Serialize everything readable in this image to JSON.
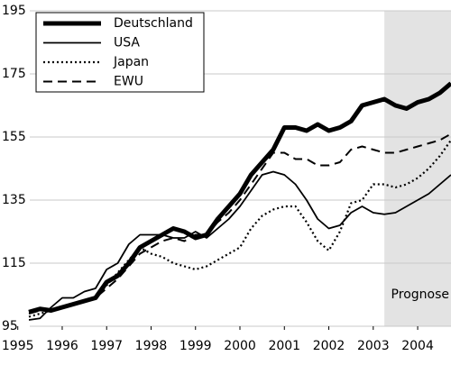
{
  "chart_data": {
    "type": "line",
    "x": [
      1995.25,
      1995.5,
      1995.75,
      1996,
      1996.25,
      1996.5,
      1996.75,
      1997,
      1997.25,
      1997.5,
      1997.75,
      1998,
      1998.25,
      1998.5,
      1998.75,
      1999,
      1999.25,
      1999.5,
      1999.75,
      2000,
      2000.25,
      2000.5,
      2000.75,
      2001,
      2001.25,
      2001.5,
      2001.75,
      2002,
      2002.25,
      2002.5,
      2002.75,
      2003,
      2003.25,
      2003.5,
      2003.75,
      2004,
      2004.25,
      2004.5,
      2004.75
    ],
    "series": [
      {
        "name": "Deutschland",
        "color": "#000000",
        "width": 5,
        "dash": "none",
        "values": [
          99.5,
          100.5,
          100,
          101,
          102,
          103,
          104,
          109,
          111,
          115,
          120,
          122,
          124,
          126,
          125,
          123,
          124,
          129,
          133,
          137,
          143,
          147,
          151,
          158,
          158,
          157,
          159,
          157,
          158,
          160,
          165,
          166,
          167,
          165,
          164,
          166,
          167,
          169,
          172
        ]
      },
      {
        "name": "USA",
        "color": "#000000",
        "width": 1.8,
        "dash": "none",
        "values": [
          97,
          97.5,
          101,
          104,
          104,
          106,
          107,
          113,
          115,
          121,
          124,
          124,
          124,
          123,
          123,
          125,
          123,
          126,
          129,
          133,
          138,
          143,
          144,
          143,
          140,
          135,
          129,
          126,
          127,
          131,
          133,
          131,
          130.5,
          131,
          133,
          135,
          137,
          140,
          143
        ]
      },
      {
        "name": "Japan",
        "color": "#000000",
        "width": 2.2,
        "dash": "2 3",
        "values": [
          98,
          99,
          100,
          101,
          102,
          103,
          104,
          108,
          112,
          116,
          120,
          118,
          117,
          115,
          114,
          113,
          114,
          116,
          118,
          120,
          126,
          130,
          132,
          133,
          133,
          128,
          122,
          119,
          125,
          134,
          135,
          140,
          140,
          139,
          140,
          142,
          145,
          149,
          154
        ]
      },
      {
        "name": "EWU",
        "color": "#000000",
        "width": 2,
        "dash": "10 6",
        "values": [
          99,
          100,
          100,
          101,
          102,
          103,
          104,
          107,
          110,
          114,
          118,
          120,
          122,
          123,
          122,
          124,
          124,
          128,
          131,
          135,
          140,
          145,
          150,
          150,
          148,
          148,
          146,
          146,
          147,
          151,
          152,
          151,
          150,
          150,
          151,
          152,
          153,
          154,
          156
        ]
      }
    ],
    "xlim": [
      1994.6,
      2004.75
    ],
    "xticks": [
      1995,
      1996,
      1997,
      1998,
      1999,
      2000,
      2001,
      2002,
      2003,
      2004
    ],
    "ylim": [
      95,
      195
    ],
    "yticks": [
      95,
      115,
      135,
      155,
      175,
      195
    ],
    "grid": true,
    "shade_xlim": [
      2003.25,
      2004.75
    ],
    "shade_label": "Prognose",
    "legend": "upper left"
  }
}
